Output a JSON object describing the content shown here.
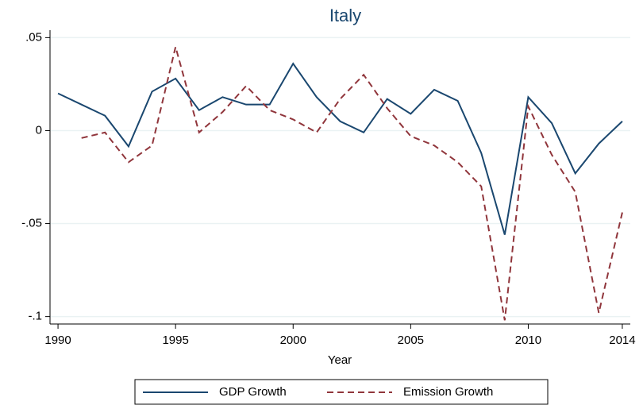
{
  "chart_data": {
    "type": "line",
    "title": "Italy",
    "x_label": "Year",
    "x": [
      1990,
      1991,
      1992,
      1993,
      1994,
      1995,
      1996,
      1997,
      1998,
      1999,
      2000,
      2001,
      2002,
      2003,
      2004,
      2005,
      2006,
      2007,
      2008,
      2009,
      2010,
      2011,
      2012,
      2013,
      2014
    ],
    "series": [
      {
        "name": "GDP Growth",
        "color": "#1a476f",
        "dash": false,
        "values": [
          0.02,
          0.014,
          0.008,
          -0.0085,
          0.021,
          0.028,
          0.011,
          0.018,
          0.014,
          0.014,
          0.036,
          0.018,
          0.005,
          -0.001,
          0.017,
          0.009,
          0.022,
          0.016,
          -0.012,
          -0.056,
          0.018,
          0.004,
          -0.023,
          -0.007,
          0.005
        ]
      },
      {
        "name": "Emission Growth",
        "color": "#90353b",
        "dash": true,
        "values": [
          null,
          -0.004,
          -0.001,
          -0.017,
          -0.008,
          0.045,
          -0.001,
          0.01,
          0.024,
          0.011,
          0.006,
          -0.001,
          0.017,
          0.03,
          0.012,
          -0.003,
          -0.008,
          -0.017,
          -0.03,
          -0.102,
          0.013,
          -0.013,
          -0.033,
          -0.098,
          -0.044
        ]
      }
    ],
    "xlim": [
      1989.66,
      2014.34
    ],
    "xticks": [
      1990,
      1995,
      2000,
      2005,
      2010,
      2014
    ],
    "ylim": [
      -0.104,
      0.054
    ],
    "yticks": [
      {
        "value": 0.05,
        "label": ".05"
      },
      0,
      {
        "value": -0.05,
        "label": "-.05"
      },
      {
        "value": -0.1,
        "label": "-.1"
      }
    ],
    "grid": true,
    "legend": "bottom"
  }
}
